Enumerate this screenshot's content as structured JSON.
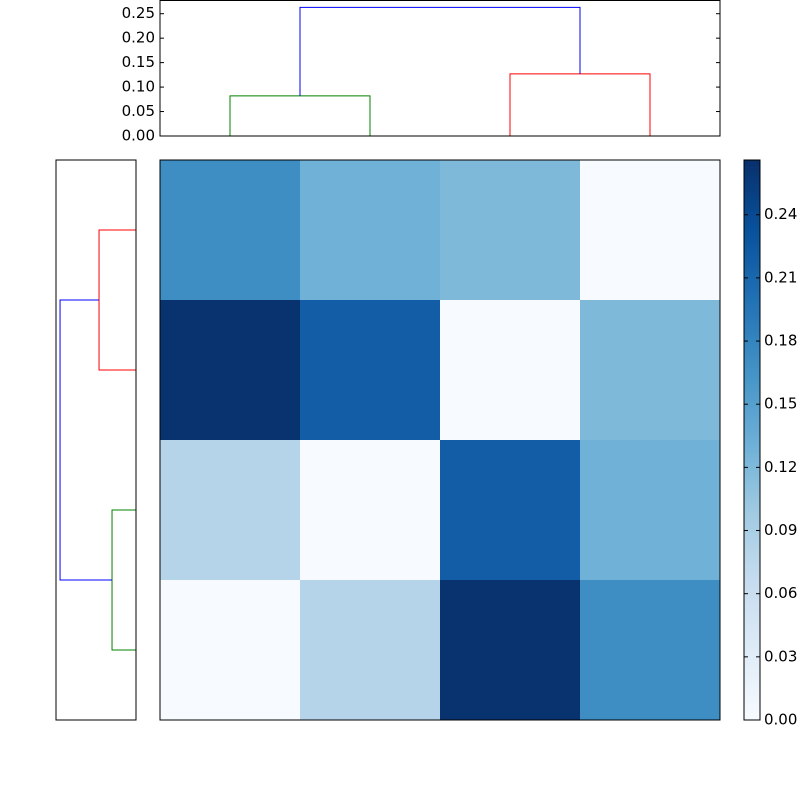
{
  "chart_data": [
    {
      "type": "dendrogram",
      "orientation": "top",
      "links": [
        {
          "children": [
            0,
            1
          ],
          "height": 0.082,
          "color": "#008000"
        },
        {
          "children": [
            2,
            3
          ],
          "height": 0.127,
          "color": "#ff0000"
        },
        {
          "children": [
            4,
            5
          ],
          "height": 0.263,
          "color": "#0000ff"
        }
      ],
      "ylim": [
        0,
        0.277
      ],
      "yticks": [
        {
          "value": 0,
          "label": "0.00"
        },
        {
          "value": 0.05,
          "label": "0.05"
        },
        {
          "value": 0.1,
          "label": "0.10"
        },
        {
          "value": 0.15,
          "label": "0.15"
        },
        {
          "value": 0.2,
          "label": "0.20"
        },
        {
          "value": 0.25,
          "label": "0.25"
        }
      ]
    },
    {
      "type": "dendrogram",
      "orientation": "left",
      "links": [
        {
          "children": [
            0,
            1
          ],
          "height": 0.128,
          "color": "#ff0000"
        },
        {
          "children": [
            2,
            3
          ],
          "height": 0.083,
          "color": "#008000"
        },
        {
          "children": [
            4,
            5
          ],
          "height": 0.263,
          "color": "#0000ff"
        }
      ],
      "xlim": [
        0.277,
        0
      ]
    },
    {
      "type": "heatmap",
      "cmap": "Blues",
      "values": [
        [
          0.17,
          0.13,
          0.12,
          0
        ],
        [
          0.263,
          0.22,
          0,
          0.12
        ],
        [
          0.08,
          0,
          0.22,
          0.13
        ],
        [
          0,
          0.08,
          0.263,
          0.17
        ]
      ],
      "clim": [
        0,
        0.266
      ],
      "cticks": [
        {
          "value": 0,
          "label": "0.00"
        },
        {
          "value": 0.03,
          "label": "0.03"
        },
        {
          "value": 0.06,
          "label": "0.06"
        },
        {
          "value": 0.09,
          "label": "0.09"
        },
        {
          "value": 0.12,
          "label": "0.12"
        },
        {
          "value": 0.15,
          "label": "0.15"
        },
        {
          "value": 0.18,
          "label": "0.18"
        },
        {
          "value": 0.21,
          "label": "0.21"
        },
        {
          "value": 0.24,
          "label": "0.24"
        }
      ]
    }
  ]
}
